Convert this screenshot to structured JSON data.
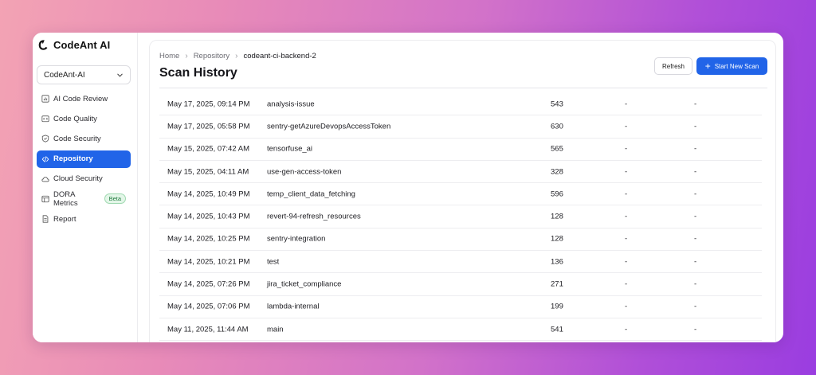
{
  "brand": {
    "name": "CodeAnt AI",
    "logo_icon": "codeant-logo-icon"
  },
  "org_select": {
    "value": "CodeAnt-AI"
  },
  "nav": {
    "items": [
      {
        "label": "AI Code Review",
        "icon": "chart-box-icon",
        "active": false
      },
      {
        "label": "Code Quality",
        "icon": "code-box-icon",
        "active": false
      },
      {
        "label": "Code Security",
        "icon": "shield-check-icon",
        "active": false
      },
      {
        "label": "Repository",
        "icon": "code-brackets-icon",
        "active": true
      },
      {
        "label": "Cloud Security",
        "icon": "cloud-icon",
        "active": false
      },
      {
        "label": "DORA Metrics",
        "icon": "dashboard-icon",
        "active": false,
        "badge": "Beta"
      },
      {
        "label": "Report",
        "icon": "document-icon",
        "active": false
      }
    ]
  },
  "breadcrumb": {
    "items": [
      "Home",
      "Repository"
    ],
    "current": "codeant-ci-backend-2"
  },
  "page": {
    "title": "Scan History"
  },
  "actions": {
    "refresh_label": "Refresh",
    "new_scan_label": "Start New Scan"
  },
  "colors": {
    "accent": "#2164e8",
    "badge_bg": "#e3f6e8",
    "badge_text": "#1f7a3e"
  },
  "scans": [
    {
      "date": "May 17, 2025, 09:14 PM",
      "branch": "analysis-issue",
      "count": "543",
      "col4": "-",
      "col5": "-"
    },
    {
      "date": "May 17, 2025, 05:58 PM",
      "branch": "sentry-getAzureDevopsAccessToken",
      "count": "630",
      "col4": "-",
      "col5": "-"
    },
    {
      "date": "May 15, 2025, 07:42 AM",
      "branch": "tensorfuse_ai",
      "count": "565",
      "col4": "-",
      "col5": "-"
    },
    {
      "date": "May 15, 2025, 04:11 AM",
      "branch": "use-gen-access-token",
      "count": "328",
      "col4": "-",
      "col5": "-"
    },
    {
      "date": "May 14, 2025, 10:49 PM",
      "branch": "temp_client_data_fetching",
      "count": "596",
      "col4": "-",
      "col5": "-"
    },
    {
      "date": "May 14, 2025, 10:43 PM",
      "branch": "revert-94-refresh_resources",
      "count": "128",
      "col4": "-",
      "col5": "-"
    },
    {
      "date": "May 14, 2025, 10:25 PM",
      "branch": "sentry-integration",
      "count": "128",
      "col4": "-",
      "col5": "-"
    },
    {
      "date": "May 14, 2025, 10:21 PM",
      "branch": "test",
      "count": "136",
      "col4": "-",
      "col5": "-"
    },
    {
      "date": "May 14, 2025, 07:26 PM",
      "branch": "jira_ticket_compliance",
      "count": "271",
      "col4": "-",
      "col5": "-"
    },
    {
      "date": "May 14, 2025, 07:06 PM",
      "branch": "lambda-internal",
      "count": "199",
      "col4": "-",
      "col5": "-"
    },
    {
      "date": "May 11, 2025, 11:44 AM",
      "branch": "main",
      "count": "541",
      "col4": "-",
      "col5": "-"
    }
  ]
}
